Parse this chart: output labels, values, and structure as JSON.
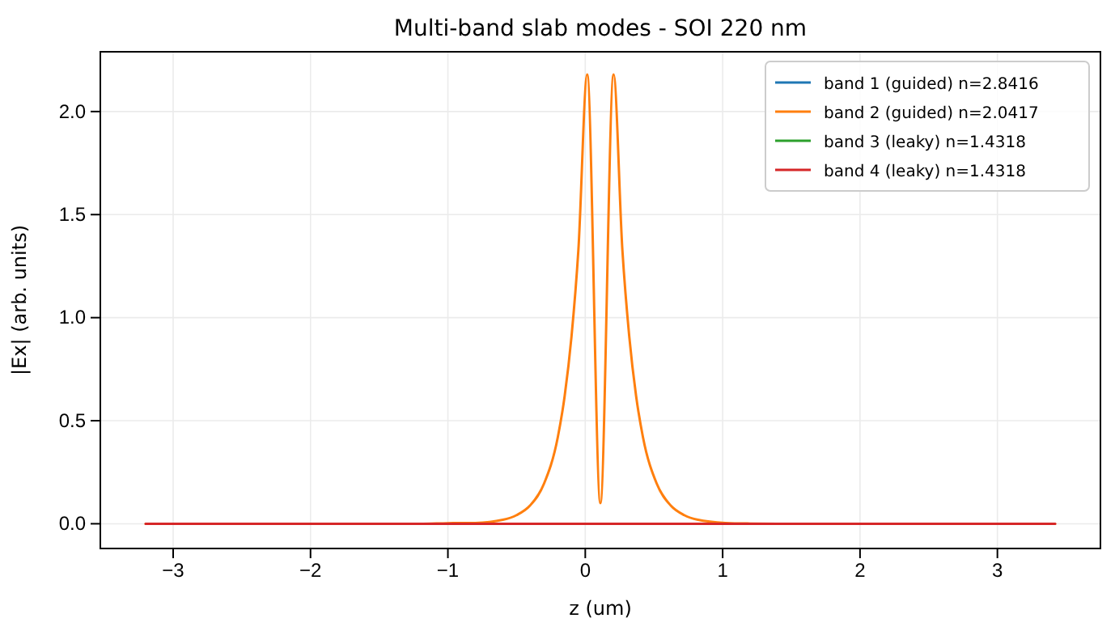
{
  "chart_data": {
    "type": "line",
    "title": "Multi-band slab modes - SOI 220 nm",
    "xlabel": "z (um)",
    "ylabel": "|Ex| (arb. units)",
    "xlim": [
      -3.53,
      3.75
    ],
    "ylim": [
      -0.12,
      2.29
    ],
    "xticks": [
      {
        "value": -3,
        "label": "−3"
      },
      {
        "value": -2,
        "label": "−2"
      },
      {
        "value": -1,
        "label": "−1"
      },
      0,
      1,
      2,
      3
    ],
    "yticks": [
      {
        "value": 0,
        "label": "0.0"
      },
      0.5,
      {
        "value": 1,
        "label": "1.0"
      },
      1.5,
      {
        "value": 2,
        "label": "2.0"
      }
    ],
    "grid": true,
    "legend": "top right",
    "series": [
      {
        "name": "band 1 (guided) n=2.8416",
        "color": "#1f77b4"
      },
      {
        "name": "band 2 (guided) n=2.0417",
        "color": "#ff7f0e",
        "x": [
          -3.2,
          -1.2,
          -1.0,
          -0.8,
          -0.6,
          -0.5,
          -0.4,
          -0.3,
          -0.2,
          -0.15,
          -0.1,
          -0.05,
          0.014,
          0.11,
          0.206,
          0.27,
          0.32,
          0.37,
          0.42,
          0.52,
          0.62,
          0.72,
          0.82,
          1.02,
          1.2,
          1.4,
          3.42
        ],
        "values": [
          0,
          0,
          0.003,
          0.004,
          0.019,
          0.042,
          0.09,
          0.195,
          0.42,
          0.62,
          0.91,
          1.33,
          2.18,
          0.1,
          2.18,
          1.33,
          0.91,
          0.62,
          0.42,
          0.195,
          0.09,
          0.042,
          0.019,
          0.004,
          0.001,
          0,
          0
        ]
      },
      {
        "name": "band 3 (leaky) n=1.4318",
        "color": "#2ca02c"
      },
      {
        "name": "band 4 (leaky) n=1.4318",
        "color": "#d62728",
        "x": [
          -3.2,
          3.42
        ],
        "values": [
          0,
          0
        ]
      }
    ]
  }
}
